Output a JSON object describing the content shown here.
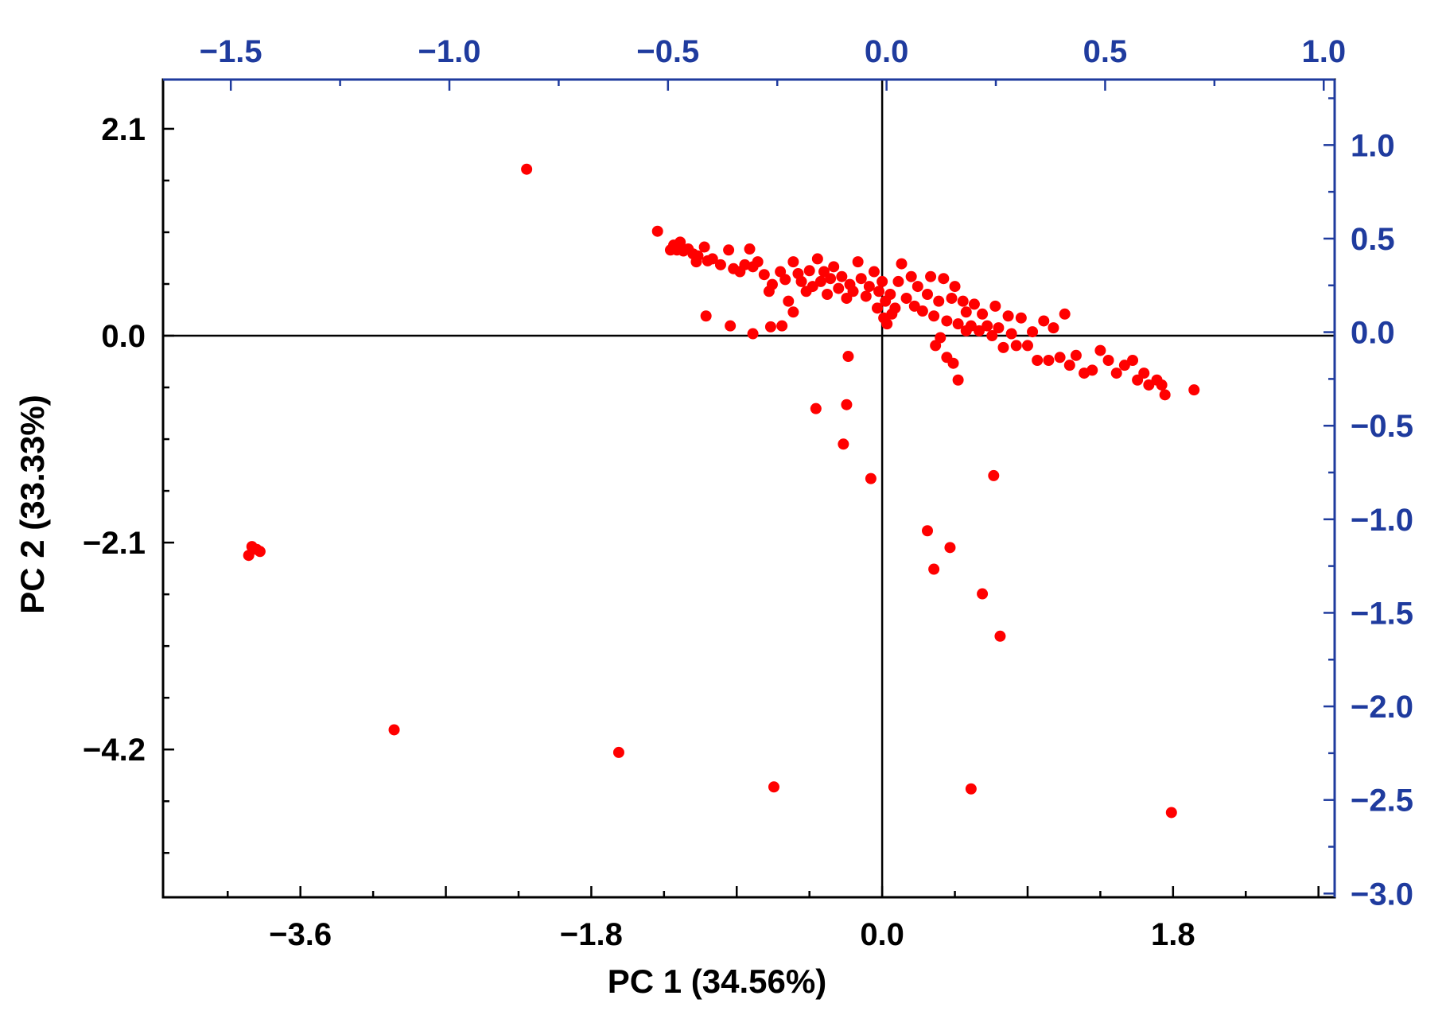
{
  "chart_data": {
    "type": "scatter",
    "xlabel": "PC 1 (34.56%)",
    "ylabel": "PC 2 (33.33%)",
    "xlim": [
      -4.45,
      2.8
    ],
    "ylim": [
      -5.7,
      2.6
    ],
    "x_ticks": [
      "−3.6",
      "−1.8",
      "0.0",
      "1.8"
    ],
    "x_tick_values": [
      -3.6,
      -1.8,
      0.0,
      1.8
    ],
    "y_ticks": [
      "2.1",
      "0.0",
      "−2.1",
      "−4.2"
    ],
    "y_tick_values": [
      2.1,
      0.0,
      -2.1,
      -4.2
    ],
    "top_axis": {
      "lim": [
        -1.655,
        1.025
      ],
      "ticks": [
        "−1.5",
        "−1.0",
        "−0.5",
        "0.0",
        "0.5",
        "1.0"
      ],
      "tick_values": [
        -1.5,
        -1.0,
        -0.5,
        0.0,
        0.5,
        1.0
      ],
      "color": "#1f3b9e"
    },
    "right_axis": {
      "lim": [
        -3.02,
        1.35
      ],
      "ticks": [
        "1.0",
        "0.5",
        "0.0",
        "−0.5",
        "−1.0",
        "−1.5",
        "−2.0",
        "−2.5",
        "−3.0"
      ],
      "tick_values": [
        1.0,
        0.5,
        0.0,
        -0.5,
        -1.0,
        -1.5,
        -2.0,
        -2.5,
        -3.0
      ],
      "color": "#1f3b9e"
    },
    "grid": false,
    "reference_lines": [
      "x=0",
      "y=0"
    ],
    "series": [
      {
        "color": "#ff0000",
        "points": [
          [
            -2.2,
            1.69
          ],
          [
            -3.92,
            -2.23
          ],
          [
            -3.9,
            -2.14
          ],
          [
            -3.87,
            -2.17
          ],
          [
            -3.85,
            -2.19
          ],
          [
            -3.02,
            -4.0
          ],
          [
            -1.63,
            -4.23
          ],
          [
            -0.67,
            -4.58
          ],
          [
            0.55,
            -4.6
          ],
          [
            1.79,
            -4.84
          ],
          [
            -0.41,
            -0.74
          ],
          [
            -0.22,
            -0.7
          ],
          [
            -0.24,
            -1.1
          ],
          [
            -0.07,
            -1.45
          ],
          [
            -0.21,
            -0.21
          ],
          [
            0.69,
            -1.42
          ],
          [
            0.28,
            -1.98
          ],
          [
            0.42,
            -2.15
          ],
          [
            0.32,
            -2.37
          ],
          [
            0.62,
            -2.62
          ],
          [
            0.73,
            -3.05
          ],
          [
            1.93,
            -0.55
          ],
          [
            -1.39,
            1.06
          ],
          [
            -1.31,
            0.87
          ],
          [
            -1.29,
            0.92
          ],
          [
            -1.27,
            0.87
          ],
          [
            -1.25,
            0.95
          ],
          [
            -1.23,
            0.86
          ],
          [
            -1.2,
            0.88
          ],
          [
            -1.17,
            0.83
          ],
          [
            -1.14,
            0.81
          ],
          [
            -1.15,
            0.75
          ],
          [
            -1.1,
            0.9
          ],
          [
            -1.08,
            0.76
          ],
          [
            -1.05,
            0.78
          ],
          [
            -1.0,
            0.72
          ],
          [
            -0.95,
            0.87
          ],
          [
            -0.92,
            0.68
          ],
          [
            -0.88,
            0.65
          ],
          [
            -0.85,
            0.72
          ],
          [
            -0.82,
            0.88
          ],
          [
            -0.8,
            0.7
          ],
          [
            -0.77,
            0.75
          ],
          [
            -0.73,
            0.62
          ],
          [
            -0.7,
            0.45
          ],
          [
            -0.68,
            0.52
          ],
          [
            -0.63,
            0.65
          ],
          [
            -0.6,
            0.57
          ],
          [
            -0.58,
            0.35
          ],
          [
            -0.55,
            0.75
          ],
          [
            -0.52,
            0.63
          ],
          [
            -0.5,
            0.55
          ],
          [
            -0.47,
            0.45
          ],
          [
            -0.45,
            0.66
          ],
          [
            -0.43,
            0.5
          ],
          [
            -0.4,
            0.78
          ],
          [
            -0.38,
            0.55
          ],
          [
            -0.36,
            0.65
          ],
          [
            -0.34,
            0.42
          ],
          [
            -0.32,
            0.58
          ],
          [
            -0.3,
            0.7
          ],
          [
            -0.27,
            0.48
          ],
          [
            -0.25,
            0.6
          ],
          [
            -0.22,
            0.38
          ],
          [
            -0.2,
            0.52
          ],
          [
            -0.18,
            0.45
          ],
          [
            -0.15,
            0.75
          ],
          [
            -0.13,
            0.58
          ],
          [
            -0.1,
            0.4
          ],
          [
            -0.08,
            0.5
          ],
          [
            -0.05,
            0.65
          ],
          [
            -0.02,
            0.45
          ],
          [
            0.0,
            0.55
          ],
          [
            0.02,
            0.35
          ],
          [
            0.05,
            0.42
          ],
          [
            0.08,
            0.28
          ],
          [
            0.1,
            0.55
          ],
          [
            0.12,
            0.73
          ],
          [
            0.15,
            0.38
          ],
          [
            0.18,
            0.6
          ],
          [
            0.2,
            0.3
          ],
          [
            0.22,
            0.5
          ],
          [
            0.25,
            0.25
          ],
          [
            0.28,
            0.42
          ],
          [
            0.3,
            0.6
          ],
          [
            0.32,
            0.2
          ],
          [
            0.35,
            0.35
          ],
          [
            0.38,
            0.58
          ],
          [
            0.4,
            0.15
          ],
          [
            0.43,
            0.38
          ],
          [
            0.45,
            0.5
          ],
          [
            0.47,
            0.12
          ],
          [
            0.5,
            0.35
          ],
          [
            0.52,
            0.24
          ],
          [
            0.55,
            0.1
          ],
          [
            0.57,
            0.32
          ],
          [
            0.6,
            0.05
          ],
          [
            0.62,
            0.22
          ],
          [
            0.65,
            0.1
          ],
          [
            0.68,
            0.0
          ],
          [
            0.7,
            0.3
          ],
          [
            0.72,
            0.08
          ],
          [
            0.75,
            -0.12
          ],
          [
            0.78,
            0.2
          ],
          [
            0.8,
            0.02
          ],
          [
            0.83,
            -0.1
          ],
          [
            0.86,
            0.18
          ],
          [
            0.9,
            -0.1
          ],
          [
            0.93,
            0.04
          ],
          [
            0.96,
            -0.25
          ],
          [
            1.0,
            0.15
          ],
          [
            1.03,
            -0.25
          ],
          [
            1.06,
            0.08
          ],
          [
            1.1,
            -0.22
          ],
          [
            1.13,
            0.22
          ],
          [
            1.16,
            -0.3
          ],
          [
            1.2,
            -0.2
          ],
          [
            1.25,
            -0.38
          ],
          [
            1.3,
            -0.35
          ],
          [
            1.35,
            -0.15
          ],
          [
            1.4,
            -0.25
          ],
          [
            1.45,
            -0.38
          ],
          [
            1.5,
            -0.3
          ],
          [
            1.55,
            -0.25
          ],
          [
            1.58,
            -0.45
          ],
          [
            1.62,
            -0.38
          ],
          [
            1.65,
            -0.5
          ],
          [
            1.7,
            -0.45
          ],
          [
            1.73,
            -0.5
          ],
          [
            1.75,
            -0.6
          ],
          [
            -1.09,
            0.2
          ],
          [
            -0.94,
            0.1
          ],
          [
            -0.8,
            0.02
          ],
          [
            -0.69,
            0.09
          ],
          [
            -0.62,
            0.1
          ],
          [
            -0.55,
            0.24
          ],
          [
            -0.03,
            0.28
          ],
          [
            0.01,
            0.18
          ],
          [
            0.03,
            0.12
          ],
          [
            0.06,
            0.22
          ],
          [
            0.33,
            -0.1
          ],
          [
            0.4,
            -0.22
          ],
          [
            0.44,
            -0.28
          ],
          [
            0.47,
            -0.45
          ],
          [
            0.36,
            -0.02
          ],
          [
            0.52,
            0.05
          ]
        ]
      }
    ]
  }
}
